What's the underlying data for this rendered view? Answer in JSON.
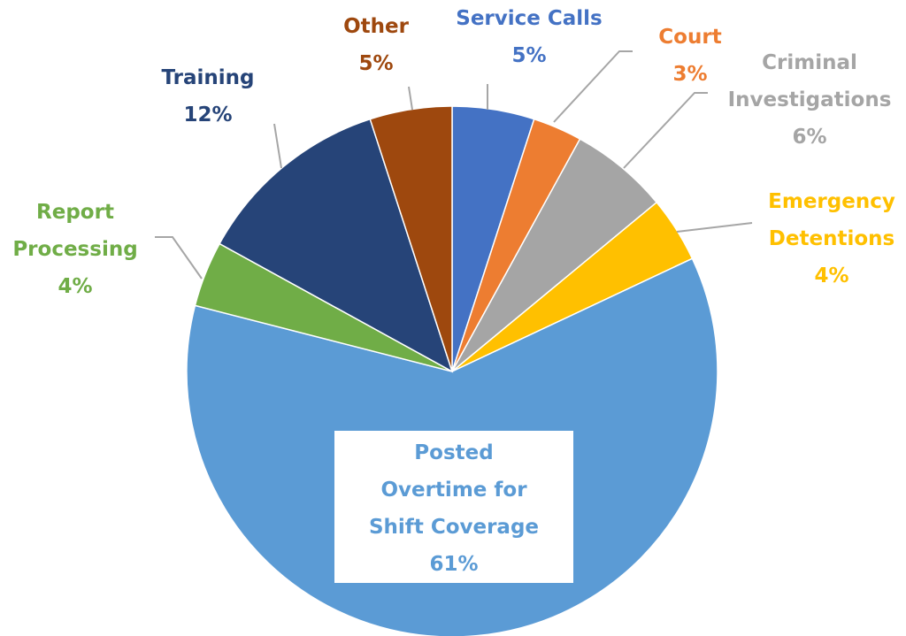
{
  "chart_data": {
    "type": "pie",
    "categories": [
      "Service Calls",
      "Court",
      "Criminal Investigations",
      "Emergency Detentions",
      "Posted Overtime for Shift Coverage",
      "Report Processing",
      "Training",
      "Other"
    ],
    "values": [
      5,
      3,
      6,
      4,
      61,
      4,
      12,
      5
    ],
    "value_labels": [
      "5%",
      "3%",
      "6%",
      "4%",
      "61%",
      "4%",
      "12%",
      "5%"
    ],
    "colors": [
      "#4472c4",
      "#ed7d31",
      "#a5a5a5",
      "#ffc000",
      "#5b9bd5",
      "#70ad47",
      "#264478",
      "#9e480e"
    ]
  }
}
